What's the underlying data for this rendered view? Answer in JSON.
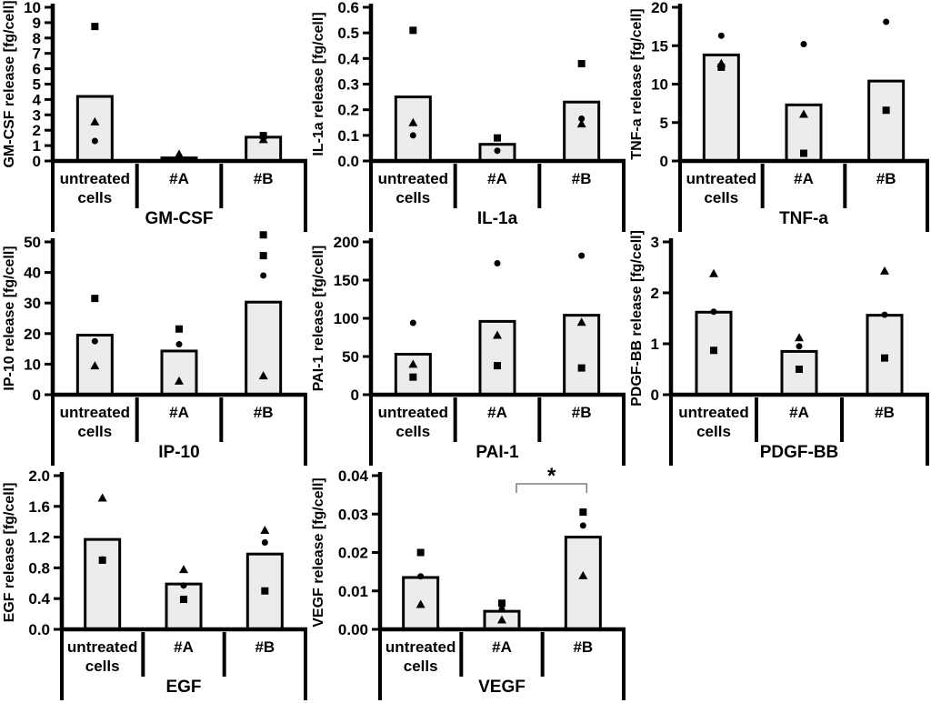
{
  "figure": {
    "background": "#ffffff",
    "bar_fill": "#ececec",
    "bar_stroke": "#000000",
    "text_color": "#000000",
    "bracket_color": "#7f7f7f",
    "units": "fg/cell",
    "categories": [
      "untreated cells",
      "#A",
      "#B"
    ]
  },
  "chart_data": [
    {
      "id": "gm-csf",
      "type": "bar",
      "title": "GM-CSF",
      "ylabel": "GM-CSF release [fg/cell]",
      "categories": [
        "untreated cells",
        "#A",
        "#B"
      ],
      "bar_values": [
        4.2,
        0.2,
        1.55
      ],
      "ylim": [
        0,
        10
      ],
      "yticks": [
        "0",
        "1",
        "2",
        "3",
        "4",
        "5",
        "6",
        "7",
        "8",
        "9",
        "10"
      ],
      "grid": {
        "row": 0,
        "col": 0
      },
      "points": [
        {
          "cat": 0,
          "marker": "square",
          "value": 8.75
        },
        {
          "cat": 0,
          "marker": "triangle",
          "value": 2.55
        },
        {
          "cat": 0,
          "marker": "circle",
          "value": 1.3
        },
        {
          "cat": 1,
          "marker": "triangle",
          "value": 0.45
        },
        {
          "cat": 2,
          "marker": "square",
          "value": 1.65
        },
        {
          "cat": 2,
          "marker": "triangle",
          "value": 1.4
        }
      ]
    },
    {
      "id": "il-1a",
      "type": "bar",
      "title": "IL-1a",
      "ylabel": "IL-1a release  [fg/cell]",
      "categories": [
        "untreated cells",
        "#A",
        "#B"
      ],
      "bar_values": [
        0.25,
        0.065,
        0.23
      ],
      "ylim": [
        0,
        0.6
      ],
      "yticks": [
        "0.0",
        "0.1",
        "0.2",
        "0.3",
        "0.4",
        "0.5",
        "0.6"
      ],
      "grid": {
        "row": 0,
        "col": 1
      },
      "points": [
        {
          "cat": 0,
          "marker": "square",
          "value": 0.51
        },
        {
          "cat": 0,
          "marker": "triangle",
          "value": 0.15
        },
        {
          "cat": 0,
          "marker": "circle",
          "value": 0.1
        },
        {
          "cat": 1,
          "marker": "square",
          "value": 0.09
        },
        {
          "cat": 1,
          "marker": "circle",
          "value": 0.04
        },
        {
          "cat": 2,
          "marker": "square",
          "value": 0.38
        },
        {
          "cat": 2,
          "marker": "circle",
          "value": 0.165
        },
        {
          "cat": 2,
          "marker": "triangle",
          "value": 0.145
        }
      ]
    },
    {
      "id": "tnf-a",
      "type": "bar",
      "title": "TNF-a",
      "ylabel": "TNF-a release  [fg/cell]",
      "categories": [
        "untreated cells",
        "#A",
        "#B"
      ],
      "bar_values": [
        13.8,
        7.3,
        10.4
      ],
      "ylim": [
        0,
        20
      ],
      "yticks": [
        "0",
        "5",
        "10",
        "15",
        "20"
      ],
      "grid": {
        "row": 0,
        "col": 2
      },
      "points": [
        {
          "cat": 0,
          "marker": "circle",
          "value": 16.3
        },
        {
          "cat": 0,
          "marker": "triangle",
          "value": 12.7
        },
        {
          "cat": 0,
          "marker": "square",
          "value": 12.2
        },
        {
          "cat": 1,
          "marker": "circle",
          "value": 15.2
        },
        {
          "cat": 1,
          "marker": "triangle",
          "value": 6.1
        },
        {
          "cat": 1,
          "marker": "square",
          "value": 1.0
        },
        {
          "cat": 2,
          "marker": "circle",
          "value": 18.1
        },
        {
          "cat": 2,
          "marker": "square",
          "value": 6.6
        }
      ]
    },
    {
      "id": "ip-10",
      "type": "bar",
      "title": "IP-10",
      "ylabel": "IP-10 release  [fg/cell]",
      "categories": [
        "untreated cells",
        "#A",
        "#B"
      ],
      "bar_values": [
        19.5,
        14.3,
        30.3
      ],
      "ylim": [
        0,
        50
      ],
      "yticks": [
        "0",
        "10",
        "20",
        "30",
        "40",
        "50"
      ],
      "grid": {
        "row": 1,
        "col": 0
      },
      "points": [
        {
          "cat": 0,
          "marker": "square",
          "value": 31.5
        },
        {
          "cat": 0,
          "marker": "circle",
          "value": 17.5
        },
        {
          "cat": 0,
          "marker": "triangle",
          "value": 9.5
        },
        {
          "cat": 1,
          "marker": "square",
          "value": 21.5
        },
        {
          "cat": 1,
          "marker": "circle",
          "value": 16.5
        },
        {
          "cat": 1,
          "marker": "triangle",
          "value": 4.5
        },
        {
          "cat": 2,
          "marker": "square",
          "value": 52.3
        },
        {
          "cat": 2,
          "marker": "square",
          "value": 45.5
        },
        {
          "cat": 2,
          "marker": "circle",
          "value": 39
        },
        {
          "cat": 2,
          "marker": "triangle",
          "value": 6.2
        }
      ]
    },
    {
      "id": "pai-1",
      "type": "bar",
      "title": "PAI-1",
      "ylabel": "PAI-1 release  [fg/cell]",
      "categories": [
        "untreated cells",
        "#A",
        "#B"
      ],
      "bar_values": [
        53,
        96,
        104
      ],
      "ylim": [
        0,
        200
      ],
      "yticks": [
        "0",
        "50",
        "100",
        "150",
        "200"
      ],
      "grid": {
        "row": 1,
        "col": 1
      },
      "points": [
        {
          "cat": 0,
          "marker": "circle",
          "value": 94
        },
        {
          "cat": 0,
          "marker": "triangle",
          "value": 40
        },
        {
          "cat": 0,
          "marker": "square",
          "value": 23
        },
        {
          "cat": 1,
          "marker": "circle",
          "value": 172
        },
        {
          "cat": 1,
          "marker": "triangle",
          "value": 78
        },
        {
          "cat": 1,
          "marker": "square",
          "value": 38
        },
        {
          "cat": 2,
          "marker": "circle",
          "value": 182
        },
        {
          "cat": 2,
          "marker": "triangle",
          "value": 95
        },
        {
          "cat": 2,
          "marker": "square",
          "value": 35
        }
      ]
    },
    {
      "id": "pdgf-bb",
      "type": "bar",
      "title": "PDGF-BB",
      "ylabel": "PDGF-BB release [fg/cell]",
      "categories": [
        "untreated cells",
        "#A",
        "#B"
      ],
      "bar_values": [
        1.62,
        0.85,
        1.56
      ],
      "ylim": [
        0,
        3
      ],
      "yticks": [
        "0",
        "1",
        "2",
        "3"
      ],
      "grid": {
        "row": 1,
        "col": 2
      },
      "points": [
        {
          "cat": 0,
          "marker": "triangle",
          "value": 2.38
        },
        {
          "cat": 0,
          "marker": "circle",
          "value": 1.63
        },
        {
          "cat": 0,
          "marker": "square",
          "value": 0.87
        },
        {
          "cat": 1,
          "marker": "triangle",
          "value": 1.12
        },
        {
          "cat": 1,
          "marker": "circle",
          "value": 0.95
        },
        {
          "cat": 1,
          "marker": "square",
          "value": 0.5
        },
        {
          "cat": 2,
          "marker": "triangle",
          "value": 2.43
        },
        {
          "cat": 2,
          "marker": "circle",
          "value": 1.57
        },
        {
          "cat": 2,
          "marker": "square",
          "value": 0.72
        }
      ]
    },
    {
      "id": "egf",
      "type": "bar",
      "title": "EGF",
      "ylabel": "EGF release [fg/cell]",
      "categories": [
        "untreated cells",
        "#A",
        "#B"
      ],
      "bar_values": [
        1.17,
        0.59,
        0.98
      ],
      "ylim": [
        0,
        2.0
      ],
      "yticks": [
        "0.0",
        "0.4",
        "0.8",
        "1.2",
        "1.6",
        "2.0"
      ],
      "grid": {
        "row": 2,
        "col": 0
      },
      "points": [
        {
          "cat": 0,
          "marker": "triangle",
          "value": 1.71
        },
        {
          "cat": 0,
          "marker": "circle",
          "value": 0.91
        },
        {
          "cat": 0,
          "marker": "square",
          "value": 0.9
        },
        {
          "cat": 1,
          "marker": "triangle",
          "value": 0.78
        },
        {
          "cat": 1,
          "marker": "circle",
          "value": 0.57
        },
        {
          "cat": 1,
          "marker": "square",
          "value": 0.39
        },
        {
          "cat": 2,
          "marker": "triangle",
          "value": 1.29
        },
        {
          "cat": 2,
          "marker": "circle",
          "value": 1.13
        },
        {
          "cat": 2,
          "marker": "square",
          "value": 0.5
        }
      ]
    },
    {
      "id": "vegf",
      "type": "bar",
      "title": "VEGF",
      "ylabel": "VEGF release  [fg/cell]",
      "categories": [
        "untreated cells",
        "#A",
        "#B"
      ],
      "bar_values": [
        0.0135,
        0.0047,
        0.024
      ],
      "ylim": [
        0,
        0.04
      ],
      "yticks": [
        "0.00",
        "0.01",
        "0.02",
        "0.03",
        "0.04"
      ],
      "grid": {
        "row": 2,
        "col": 1
      },
      "significance": {
        "from_cat": 1,
        "to_cat": 2,
        "label": "*"
      },
      "points": [
        {
          "cat": 0,
          "marker": "square",
          "value": 0.02
        },
        {
          "cat": 0,
          "marker": "circle",
          "value": 0.0138
        },
        {
          "cat": 0,
          "marker": "triangle",
          "value": 0.0065
        },
        {
          "cat": 1,
          "marker": "square",
          "value": 0.0068
        },
        {
          "cat": 1,
          "marker": "circle",
          "value": 0.0052
        },
        {
          "cat": 1,
          "marker": "triangle",
          "value": 0.0025
        },
        {
          "cat": 2,
          "marker": "square",
          "value": 0.0305
        },
        {
          "cat": 2,
          "marker": "circle",
          "value": 0.027
        },
        {
          "cat": 2,
          "marker": "triangle",
          "value": 0.014
        }
      ]
    }
  ]
}
